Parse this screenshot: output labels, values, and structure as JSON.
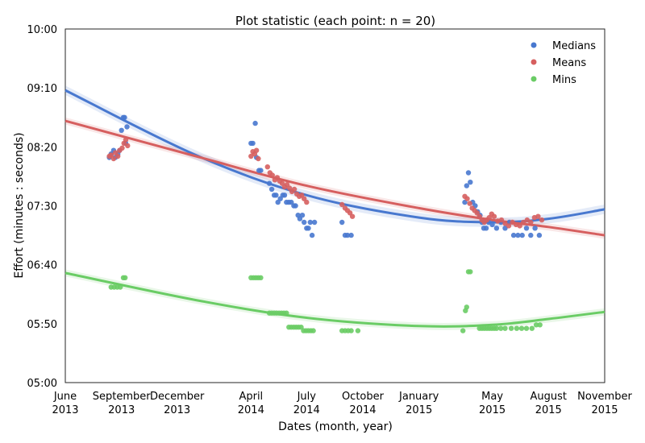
{
  "chart_data": {
    "type": "scatter",
    "title": "Plot statistic (each point: n = 20)",
    "xlabel": "Dates (month, year)",
    "ylabel": "Effort (minutes : seconds)",
    "x_ticks": [
      {
        "date": "2013-06-01",
        "line1": "June",
        "line2": "2013"
      },
      {
        "date": "2013-09-01",
        "line1": "September",
        "line2": "2013"
      },
      {
        "date": "2013-12-01",
        "line1": "December",
        "line2": "2013"
      },
      {
        "date": "2014-04-01",
        "line1": "April",
        "line2": "2014"
      },
      {
        "date": "2014-07-01",
        "line1": "July",
        "line2": "2014"
      },
      {
        "date": "2014-10-01",
        "line1": "October",
        "line2": "2014"
      },
      {
        "date": "2015-01-01",
        "line1": "January",
        "line2": "2015"
      },
      {
        "date": "2015-05-01",
        "line1": "May",
        "line2": "2015"
      },
      {
        "date": "2015-08-01",
        "line1": "August",
        "line2": "2015"
      },
      {
        "date": "2015-11-01",
        "line1": "November",
        "line2": "2015"
      }
    ],
    "xlim": [
      "2013-06-01",
      "2015-11-01"
    ],
    "y_unit": "seconds",
    "ylim": [
      300,
      600
    ],
    "y_ticks": [
      {
        "value": 300,
        "label": "05:00"
      },
      {
        "value": 350,
        "label": "05:50"
      },
      {
        "value": 400,
        "label": "06:40"
      },
      {
        "value": 450,
        "label": "07:30"
      },
      {
        "value": 500,
        "label": "08:20"
      },
      {
        "value": 550,
        "label": "09:10"
      },
      {
        "value": 600,
        "label": "10:00"
      }
    ],
    "legend_position": "top-right",
    "series": [
      {
        "name": "Medians",
        "color": "#4878cf",
        "points": [
          [
            "2013-08-12",
            491
          ],
          [
            "2013-08-15",
            494
          ],
          [
            "2013-08-19",
            497
          ],
          [
            "2013-08-22",
            491
          ],
          [
            "2013-08-26",
            494
          ],
          [
            "2013-08-29",
            497
          ],
          [
            "2013-09-01",
            514
          ],
          [
            "2013-09-04",
            525
          ],
          [
            "2013-09-06",
            525
          ],
          [
            "2013-09-08",
            503
          ],
          [
            "2013-09-10",
            517
          ],
          [
            "2014-04-01",
            503
          ],
          [
            "2014-04-04",
            503
          ],
          [
            "2014-04-08",
            520
          ],
          [
            "2014-04-10",
            491
          ],
          [
            "2014-04-14",
            480
          ],
          [
            "2014-04-17",
            480
          ],
          [
            "2014-05-01",
            469
          ],
          [
            "2014-05-05",
            464
          ],
          [
            "2014-05-09",
            459
          ],
          [
            "2014-05-12",
            459
          ],
          [
            "2014-05-15",
            453
          ],
          [
            "2014-05-19",
            456
          ],
          [
            "2014-05-23",
            459
          ],
          [
            "2014-05-26",
            459
          ],
          [
            "2014-05-29",
            453
          ],
          [
            "2014-06-02",
            453
          ],
          [
            "2014-06-06",
            453
          ],
          [
            "2014-06-10",
            450
          ],
          [
            "2014-06-13",
            450
          ],
          [
            "2014-06-17",
            442
          ],
          [
            "2014-06-20",
            439
          ],
          [
            "2014-06-24",
            442
          ],
          [
            "2014-06-27",
            436
          ],
          [
            "2014-07-01",
            431
          ],
          [
            "2014-07-04",
            431
          ],
          [
            "2014-07-07",
            436
          ],
          [
            "2014-07-10",
            425
          ],
          [
            "2014-07-14",
            436
          ],
          [
            "2014-08-28",
            436
          ],
          [
            "2014-09-02",
            425
          ],
          [
            "2014-09-06",
            425
          ],
          [
            "2014-09-12",
            425
          ],
          [
            "2015-03-17",
            453
          ],
          [
            "2015-03-20",
            467
          ],
          [
            "2015-03-23",
            478
          ],
          [
            "2015-03-26",
            470
          ],
          [
            "2015-03-30",
            453
          ],
          [
            "2015-04-03",
            450
          ],
          [
            "2015-04-07",
            445
          ],
          [
            "2015-04-11",
            442
          ],
          [
            "2015-04-14",
            436
          ],
          [
            "2015-04-17",
            431
          ],
          [
            "2015-04-21",
            431
          ],
          [
            "2015-04-25",
            436
          ],
          [
            "2015-05-01",
            434
          ],
          [
            "2015-05-08",
            431
          ],
          [
            "2015-05-15",
            436
          ],
          [
            "2015-05-22",
            431
          ],
          [
            "2015-05-29",
            436
          ],
          [
            "2015-06-05",
            425
          ],
          [
            "2015-06-12",
            425
          ],
          [
            "2015-06-19",
            425
          ],
          [
            "2015-06-26",
            431
          ],
          [
            "2015-07-03",
            425
          ],
          [
            "2015-07-10",
            431
          ],
          [
            "2015-07-17",
            425
          ]
        ]
      },
      {
        "name": "Means",
        "color": "#d65f5f",
        "points": [
          [
            "2013-08-12",
            492
          ],
          [
            "2013-08-15",
            493
          ],
          [
            "2013-08-19",
            490
          ],
          [
            "2013-08-22",
            495
          ],
          [
            "2013-08-26",
            492
          ],
          [
            "2013-08-29",
            497
          ],
          [
            "2013-09-02",
            499
          ],
          [
            "2013-09-05",
            503
          ],
          [
            "2013-09-08",
            506
          ],
          [
            "2013-09-11",
            501
          ],
          [
            "2014-04-01",
            492
          ],
          [
            "2014-04-04",
            496
          ],
          [
            "2014-04-07",
            494
          ],
          [
            "2014-04-10",
            497
          ],
          [
            "2014-04-13",
            490
          ],
          [
            "2014-04-28",
            483
          ],
          [
            "2014-05-02",
            478
          ],
          [
            "2014-05-06",
            476
          ],
          [
            "2014-05-10",
            472
          ],
          [
            "2014-05-14",
            474
          ],
          [
            "2014-05-18",
            471
          ],
          [
            "2014-05-22",
            469
          ],
          [
            "2014-05-26",
            466
          ],
          [
            "2014-05-30",
            468
          ],
          [
            "2014-06-03",
            465
          ],
          [
            "2014-06-07",
            462
          ],
          [
            "2014-06-11",
            464
          ],
          [
            "2014-06-15",
            460
          ],
          [
            "2014-06-19",
            458
          ],
          [
            "2014-06-23",
            459
          ],
          [
            "2014-06-27",
            456
          ],
          [
            "2014-07-01",
            453
          ],
          [
            "2014-08-28",
            451
          ],
          [
            "2014-09-02",
            448
          ],
          [
            "2014-09-06",
            446
          ],
          [
            "2014-09-10",
            444
          ],
          [
            "2014-09-14",
            441
          ],
          [
            "2015-03-17",
            458
          ],
          [
            "2015-03-21",
            456
          ],
          [
            "2015-03-25",
            452
          ],
          [
            "2015-03-29",
            448
          ],
          [
            "2015-04-02",
            446
          ],
          [
            "2015-04-06",
            444
          ],
          [
            "2015-04-10",
            441
          ],
          [
            "2015-04-14",
            438
          ],
          [
            "2015-04-18",
            436
          ],
          [
            "2015-04-22",
            438
          ],
          [
            "2015-04-26",
            440
          ],
          [
            "2015-04-30",
            443
          ],
          [
            "2015-05-04",
            441
          ],
          [
            "2015-05-10",
            437
          ],
          [
            "2015-05-16",
            438
          ],
          [
            "2015-05-22",
            435
          ],
          [
            "2015-05-28",
            433
          ],
          [
            "2015-06-03",
            436
          ],
          [
            "2015-06-09",
            434
          ],
          [
            "2015-06-15",
            433
          ],
          [
            "2015-06-21",
            436
          ],
          [
            "2015-06-27",
            438
          ],
          [
            "2015-07-03",
            436
          ],
          [
            "2015-07-09",
            440
          ],
          [
            "2015-07-15",
            441
          ],
          [
            "2015-07-21",
            438
          ]
        ]
      },
      {
        "name": "Mins",
        "color": "#6acc65",
        "points": [
          [
            "2013-08-15",
            381
          ],
          [
            "2013-08-20",
            381
          ],
          [
            "2013-08-25",
            381
          ],
          [
            "2013-08-30",
            381
          ],
          [
            "2013-09-04",
            389
          ],
          [
            "2013-09-07",
            389
          ],
          [
            "2014-04-01",
            389
          ],
          [
            "2014-04-05",
            389
          ],
          [
            "2014-04-09",
            389
          ],
          [
            "2014-04-13",
            389
          ],
          [
            "2014-04-17",
            389
          ],
          [
            "2014-05-01",
            359
          ],
          [
            "2014-05-05",
            359
          ],
          [
            "2014-05-09",
            359
          ],
          [
            "2014-05-13",
            359
          ],
          [
            "2014-05-17",
            359
          ],
          [
            "2014-05-21",
            359
          ],
          [
            "2014-05-25",
            359
          ],
          [
            "2014-05-29",
            359
          ],
          [
            "2014-06-02",
            347
          ],
          [
            "2014-06-06",
            347
          ],
          [
            "2014-06-10",
            347
          ],
          [
            "2014-06-14",
            347
          ],
          [
            "2014-06-18",
            347
          ],
          [
            "2014-06-22",
            347
          ],
          [
            "2014-06-26",
            344
          ],
          [
            "2014-06-30",
            344
          ],
          [
            "2014-07-04",
            344
          ],
          [
            "2014-07-08",
            344
          ],
          [
            "2014-07-12",
            344
          ],
          [
            "2014-08-28",
            344
          ],
          [
            "2014-09-02",
            344
          ],
          [
            "2014-09-07",
            344
          ],
          [
            "2014-09-12",
            344
          ],
          [
            "2014-09-23",
            344
          ],
          [
            "2015-03-14",
            344
          ],
          [
            "2015-03-18",
            361
          ],
          [
            "2015-03-20",
            364
          ],
          [
            "2015-03-23",
            394
          ],
          [
            "2015-03-26",
            394
          ],
          [
            "2015-04-10",
            346
          ],
          [
            "2015-04-14",
            346
          ],
          [
            "2015-04-18",
            346
          ],
          [
            "2015-04-22",
            346
          ],
          [
            "2015-04-26",
            346
          ],
          [
            "2015-04-30",
            346
          ],
          [
            "2015-05-04",
            346
          ],
          [
            "2015-05-08",
            346
          ],
          [
            "2015-05-15",
            346
          ],
          [
            "2015-05-22",
            346
          ],
          [
            "2015-06-01",
            346
          ],
          [
            "2015-06-10",
            346
          ],
          [
            "2015-06-18",
            346
          ],
          [
            "2015-06-26",
            346
          ],
          [
            "2015-07-05",
            346
          ],
          [
            "2015-07-12",
            349
          ],
          [
            "2015-07-18",
            349
          ]
        ]
      }
    ],
    "fit_lines": [
      {
        "series": "Medians",
        "color": "#4878cf",
        "band": 4,
        "points": [
          [
            "2013-06-01",
            548
          ],
          [
            "2014-01-01",
            493
          ],
          [
            "2014-07-01",
            459
          ],
          [
            "2015-01-01",
            440
          ],
          [
            "2015-05-01",
            436
          ],
          [
            "2015-08-01",
            439
          ],
          [
            "2015-11-01",
            447
          ]
        ]
      },
      {
        "series": "Means",
        "color": "#d65f5f",
        "band": 3,
        "points": [
          [
            "2013-06-01",
            522
          ],
          [
            "2014-01-01",
            492
          ],
          [
            "2014-07-01",
            467
          ],
          [
            "2015-01-01",
            448
          ],
          [
            "2015-05-01",
            438
          ],
          [
            "2015-08-01",
            432
          ],
          [
            "2015-11-01",
            425
          ]
        ]
      },
      {
        "series": "Mins",
        "color": "#6acc65",
        "band": 3,
        "points": [
          [
            "2013-06-01",
            393
          ],
          [
            "2014-01-01",
            370
          ],
          [
            "2014-07-01",
            355
          ],
          [
            "2015-01-01",
            348
          ],
          [
            "2015-05-01",
            349
          ],
          [
            "2015-08-01",
            354
          ],
          [
            "2015-11-01",
            360
          ]
        ]
      }
    ]
  }
}
